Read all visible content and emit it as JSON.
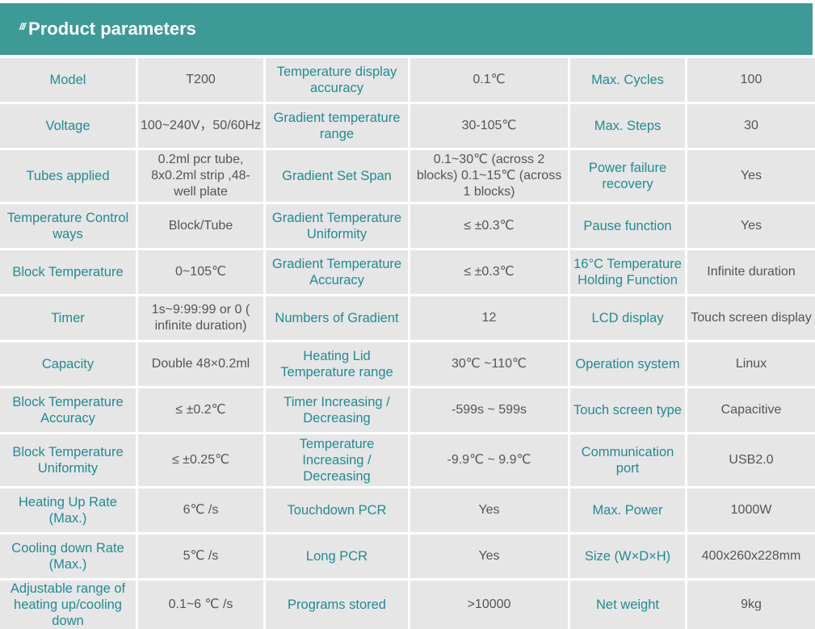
{
  "header": {
    "mark": "///",
    "title": "Product parameters"
  },
  "rows": [
    [
      {
        "label": "Model",
        "value": "T200"
      },
      {
        "label": "Temperature display accuracy",
        "value": "0.1℃"
      },
      {
        "label": "Max. Cycles",
        "value": "100"
      }
    ],
    [
      {
        "label": "Voltage",
        "value": "100~240V，50/60Hz"
      },
      {
        "label": "Gradient temperature range",
        "value": "30-105℃"
      },
      {
        "label": "Max. Steps",
        "value": "30"
      }
    ],
    [
      {
        "label": "Tubes applied",
        "value": "0.2ml pcr tube, 8x0.2ml strip ,48-well plate"
      },
      {
        "label": "Gradient Set Span",
        "value": "0.1~30℃ (across 2 blocks) 0.1~15℃ (across 1 blocks)"
      },
      {
        "label": "Power failure recovery",
        "value": "Yes"
      }
    ],
    [
      {
        "label": "Temperature Control ways",
        "value": "Block/Tube"
      },
      {
        "label": "Gradient Temperature Uniformity",
        "value": "≤ ±0.3℃"
      },
      {
        "label": "Pause function",
        "value": "Yes"
      }
    ],
    [
      {
        "label": "Block Temperature",
        "value": "0~105℃"
      },
      {
        "label": "Gradient Temperature Accuracy",
        "value": "≤ ±0.3℃"
      },
      {
        "label": "16°C Temperature Holding Function",
        "value": "Infinite duration"
      }
    ],
    [
      {
        "label": "Timer",
        "value": "1s~9:99:99 or 0 ( infinite duration)"
      },
      {
        "label": "Numbers of Gradient",
        "value": "12"
      },
      {
        "label": "LCD display",
        "value": "Touch screen display"
      }
    ],
    [
      {
        "label": "Capacity",
        "value": "Double 48×0.2ml"
      },
      {
        "label": "Heating Lid Temperature range",
        "value": "30℃ ~110℃"
      },
      {
        "label": "Operation system",
        "value": "Linux"
      }
    ],
    [
      {
        "label": "Block Temperature Accuracy",
        "value": "≤ ±0.2℃"
      },
      {
        "label": "Timer Increasing / Decreasing",
        "value": "-599s ~ 599s"
      },
      {
        "label": "Touch screen type",
        "value": "Capacitive"
      }
    ],
    [
      {
        "label": "Block Temperature Uniformity",
        "value": "≤ ±0.25℃"
      },
      {
        "label": "Temperature Increasing / Decreasing",
        "value": "-9.9℃ ~ 9.9℃"
      },
      {
        "label": "Communication port",
        "value": "USB2.0"
      }
    ],
    [
      {
        "label": "Heating Up Rate (Max.)",
        "value": "6℃ /s"
      },
      {
        "label": "Touchdown PCR",
        "value": "Yes"
      },
      {
        "label": "Max. Power",
        "value": "1000W"
      }
    ],
    [
      {
        "label": "Cooling down Rate (Max.)",
        "value": "5℃ /s"
      },
      {
        "label": "Long PCR",
        "value": "Yes"
      },
      {
        "label": "Size (W×D×H)",
        "value": "400x260x228mm"
      }
    ],
    [
      {
        "label": "Adjustable range of heating up/cooling down",
        "value": "0.1~6 ℃ /s"
      },
      {
        "label": "Programs stored",
        "value": ">10000"
      },
      {
        "label": "Net weight",
        "value": "9kg"
      }
    ]
  ]
}
